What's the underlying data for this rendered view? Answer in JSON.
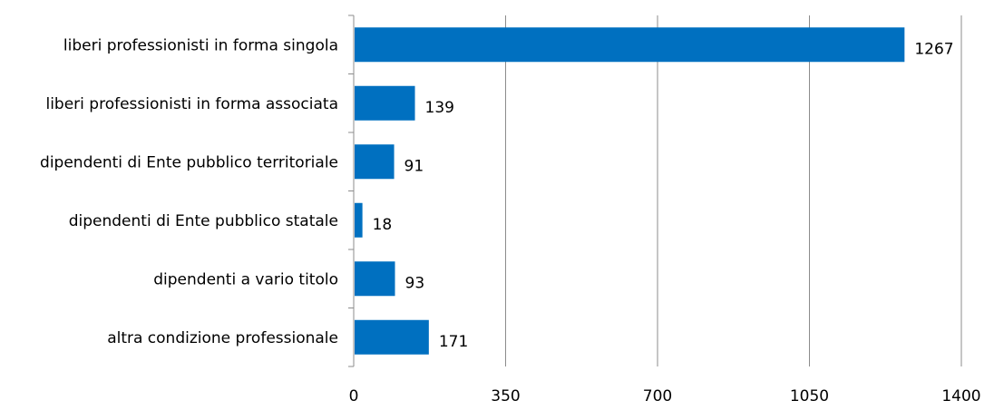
{
  "chart_data": {
    "type": "bar",
    "orientation": "horizontal",
    "categories": [
      "liberi professionisti  in forma singola",
      "liberi professionisti in forma associata",
      "dipendenti di Ente pubblico territoriale",
      "dipendenti di Ente pubblico statale",
      "dipendenti a vario titolo",
      "altra condizione professionale"
    ],
    "values": [
      1267,
      139,
      91,
      18,
      93,
      171
    ],
    "data_labels": [
      "1267",
      "139",
      "91",
      "18",
      "93",
      "171"
    ],
    "xlim": [
      0,
      1400
    ],
    "x_ticks": [
      0,
      350,
      700,
      1050,
      1400
    ],
    "x_tick_labels": [
      "0",
      "350",
      "700",
      "1050",
      "1400"
    ],
    "title": "",
    "xlabel": "",
    "ylabel": "",
    "grid": "vertical",
    "legend": "none",
    "colors": {
      "bar": "#0070c0",
      "grid": "#8c8c8c",
      "axis": "#8c8c8c"
    }
  }
}
